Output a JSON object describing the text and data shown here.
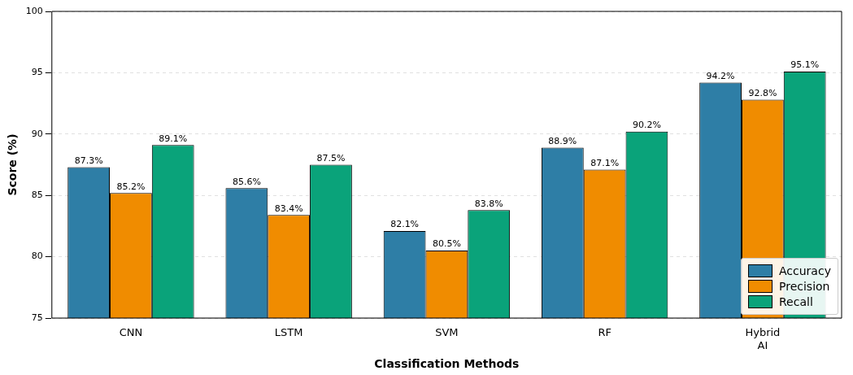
{
  "chart_data": {
    "type": "bar",
    "xlabel": "Classification Methods",
    "ylabel": "Score (%)",
    "categories": [
      "CNN",
      "LSTM",
      "SVM",
      "RF",
      "Hybrid\nAI"
    ],
    "series": [
      {
        "name": "Accuracy",
        "color": "#2e7ea6",
        "values": [
          87.3,
          85.6,
          82.1,
          88.9,
          94.2
        ],
        "value_labels": [
          "87.3%",
          "85.6%",
          "82.1%",
          "88.9%",
          "94.2%"
        ]
      },
      {
        "name": "Precision",
        "color": "#f08c00",
        "values": [
          85.2,
          83.4,
          80.5,
          87.1,
          92.8
        ],
        "value_labels": [
          "85.2%",
          "83.4%",
          "80.5%",
          "87.1%",
          "92.8%"
        ]
      },
      {
        "name": "Recall",
        "color": "#0aa37a",
        "values": [
          89.1,
          87.5,
          83.8,
          90.2,
          95.1
        ],
        "value_labels": [
          "89.1%",
          "87.5%",
          "83.8%",
          "90.2%",
          "95.1%"
        ]
      }
    ],
    "ylim": [
      75,
      100
    ],
    "yticks": [
      75,
      80,
      85,
      90,
      95,
      100
    ],
    "grid": "y",
    "legend": "bottom right"
  }
}
